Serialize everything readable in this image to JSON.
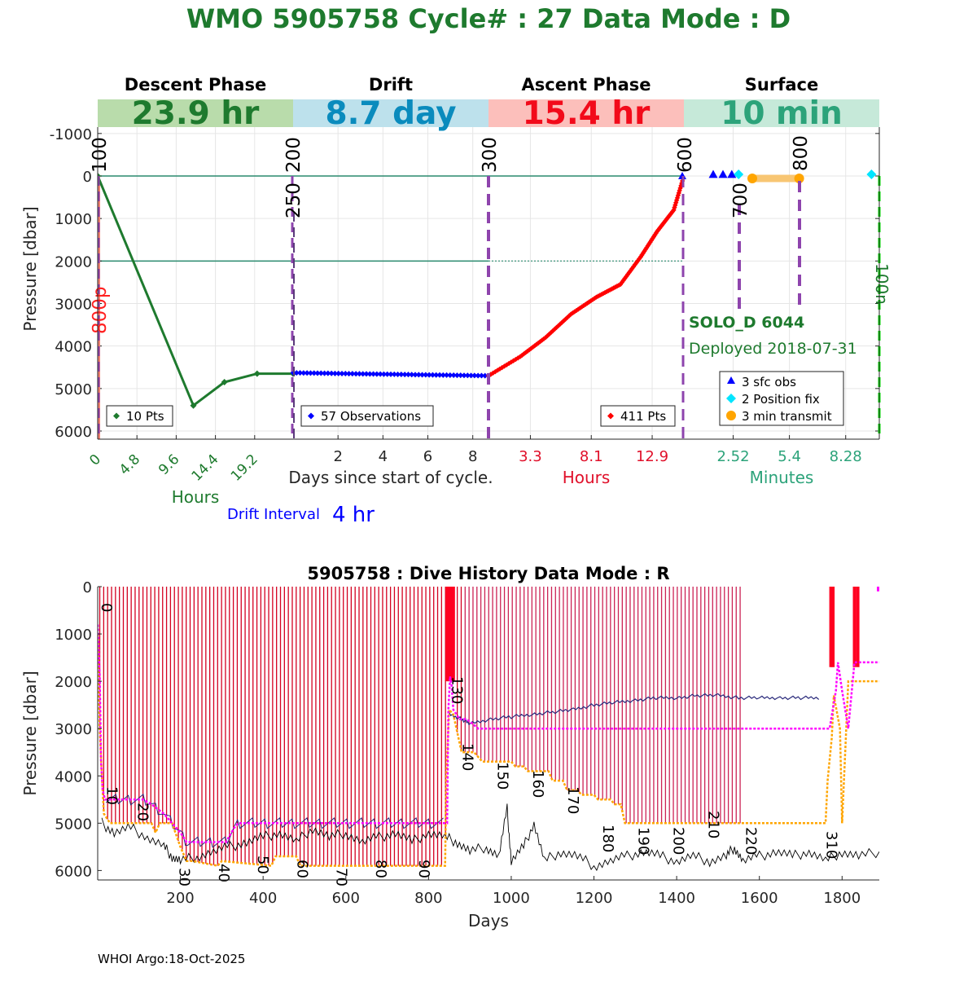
{
  "header": {
    "title": "WMO 5905758   Cycle# : 27   Data Mode : D"
  },
  "footer": {
    "credit": "WHOI Argo:18-Oct-2025"
  },
  "float_info": {
    "name": "SOLO_D 6044",
    "deployed": "Deployed 2018-07-31"
  },
  "colors": {
    "green": "#1e7a2e",
    "blue": "#0000ff",
    "red": "#ff0000",
    "teal": "#2ca37a",
    "purple": "#8e44ad",
    "magenta": "#ff00ff",
    "orange": "#ffa500",
    "cyan": "#00e5ff",
    "dive_red": "#d40020",
    "dive_navy": "#28287a"
  },
  "chart_data": [
    {
      "type": "line",
      "title": "",
      "ylabel": "Pressure [dbar]",
      "ylim": [
        6200,
        -1000
      ],
      "y_ticks": [
        "-1000",
        "0",
        "1000",
        "2000",
        "3000",
        "4000",
        "5000",
        "6000"
      ],
      "xlabel": "Days since start of cycle.",
      "ref_lines": [
        0,
        2000
      ],
      "drift_interval": {
        "label": "Drift Interval",
        "value": "4 hr"
      },
      "phases": [
        {
          "name": "Descent Phase",
          "duration": "23.9 hr",
          "axis_label": "Hours",
          "x_ticks": [
            "0",
            "4.8",
            "9.6",
            "14.4",
            "19.2"
          ],
          "legend": "10 Pts",
          "markers": [
            "100"
          ],
          "extra_label": "800p",
          "series": {
            "x": [
              0,
              11.7,
              15.5,
              19.5,
              23.9
            ],
            "y": [
              0,
              5400,
              4850,
              4650,
              4650
            ]
          }
        },
        {
          "name": "Drift",
          "duration": "8.7 day",
          "axis_label": "",
          "x_ticks": [
            "2",
            "4",
            "6",
            "8"
          ],
          "legend": "57 Observations",
          "markers": [
            "200",
            "250"
          ],
          "series": {
            "x_start": 0,
            "x_end": 8.7,
            "count": 57,
            "y_start": 4630,
            "y_end": 4700
          }
        },
        {
          "name": "Ascent Phase",
          "duration": "15.4 hr",
          "axis_label": "Hours",
          "x_ticks": [
            "3.3",
            "8.1",
            "12.9"
          ],
          "legend": "411 Pts",
          "markers": [
            "300",
            "600"
          ],
          "series": {
            "x": [
              0,
              2.5,
              4.5,
              6.5,
              8.5,
              10.4,
              12.0,
              13.3,
              14.6,
              15.4
            ],
            "y": [
              4700,
              4250,
              3800,
              3250,
              2850,
              2550,
              1900,
              1300,
              800,
              0
            ]
          }
        },
        {
          "name": "Surface",
          "duration": "10 min",
          "axis_label": "Minutes",
          "x_ticks": [
            "2.52",
            "5.4",
            "8.28"
          ],
          "legend": [
            "3 sfc obs",
            "2 Position fix",
            "3 min transmit"
          ],
          "markers": [
            "700",
            "800",
            "100n"
          ],
          "sfc_obs_x": [
            1.5,
            2.0,
            2.45
          ],
          "position_fix_x": [
            2.8,
            9.6
          ],
          "transmit": {
            "x_start": 3.5,
            "x_end": 5.9,
            "points_x": [
              3.5,
              5.9
            ]
          }
        }
      ]
    },
    {
      "type": "line",
      "title": "5905758 : Dive History      Data Mode : R",
      "xlabel": "Days",
      "ylabel": "Pressure [dbar]",
      "xlim": [
        0,
        1890
      ],
      "ylim": [
        6200,
        0
      ],
      "x_ticks": [
        200,
        400,
        600,
        800,
        1000,
        1200,
        1400,
        1600,
        1800
      ],
      "y_ticks": [
        0,
        1000,
        2000,
        3000,
        4000,
        5000,
        6000
      ],
      "cycle_labels": [
        {
          "label": "0",
          "x": 2
        },
        {
          "label": "10",
          "x": 15
        },
        {
          "label": "20",
          "x": 90
        },
        {
          "label": "30",
          "x": 190
        },
        {
          "label": "40",
          "x": 285
        },
        {
          "label": "50",
          "x": 380
        },
        {
          "label": "60",
          "x": 475
        },
        {
          "label": "70",
          "x": 570
        },
        {
          "label": "80",
          "x": 665
        },
        {
          "label": "90",
          "x": 770
        },
        {
          "label": "130",
          "x": 850
        },
        {
          "label": "140",
          "x": 875
        },
        {
          "label": "150",
          "x": 960
        },
        {
          "label": "160",
          "x": 1045
        },
        {
          "label": "170",
          "x": 1130
        },
        {
          "label": "180",
          "x": 1215
        },
        {
          "label": "190",
          "x": 1300
        },
        {
          "label": "200",
          "x": 1385
        },
        {
          "label": "210",
          "x": 1470
        },
        {
          "label": "220",
          "x": 1560
        },
        {
          "label": "310",
          "x": 1755
        }
      ],
      "park_pressure": {
        "x": [
          0,
          5,
          8,
          12,
          18,
          40,
          110,
          130,
          160,
          180,
          200,
          215,
          260,
          310,
          330,
          340,
          560,
          600,
          650,
          700,
          780,
          845,
          848,
          852,
          856,
          860,
          875,
          890,
          900,
          920,
          940,
          1000,
          1500,
          1700,
          1770,
          1785,
          1790,
          1800,
          1815,
          1830,
          1890
        ],
        "y": [
          800,
          1900,
          3700,
          4300,
          4500,
          4500,
          4500,
          4600,
          4800,
          5000,
          5200,
          5400,
          5400,
          5400,
          5100,
          5000,
          5000,
          5000,
          5000,
          5000,
          5000,
          5000,
          2600,
          1900,
          2100,
          2600,
          2800,
          2800,
          2850,
          3000,
          3000,
          3000,
          3000,
          3000,
          3000,
          2200,
          1600,
          2200,
          3000,
          1600,
          1600
        ]
      },
      "profile_depth": {
        "x": [
          0,
          5,
          10,
          15,
          30,
          45,
          110,
          130,
          140,
          150,
          170,
          180,
          200,
          215,
          230,
          290,
          300,
          420,
          430,
          480,
          490,
          760,
          770,
          840,
          843,
          850,
          860,
          870,
          880,
          910,
          930,
          1000,
          1010,
          1030,
          1040,
          1090,
          1100,
          1125,
          1135,
          1160,
          1170,
          1200,
          1210,
          1240,
          1250,
          1265,
          1275,
          1760,
          1765,
          1775,
          1780,
          1795,
          1800,
          1810,
          1815,
          1830,
          1890
        ],
        "y": [
          1000,
          3000,
          4000,
          4800,
          5000,
          5000,
          5000,
          5000,
          5200,
          5000,
          5000,
          5000,
          5500,
          5800,
          5800,
          5900,
          5800,
          5900,
          5700,
          5700,
          5900,
          5900,
          5900,
          5900,
          4000,
          2600,
          2700,
          3100,
          3500,
          3500,
          3700,
          3700,
          3800,
          3800,
          3900,
          3900,
          4100,
          4100,
          4300,
          4300,
          4400,
          4400,
          4500,
          4500,
          4600,
          4600,
          5000,
          5000,
          4100,
          3200,
          2300,
          3000,
          5000,
          3000,
          2000,
          2000,
          2000
        ]
      },
      "drift_pressure": {
        "x": [
          850,
          880,
          900,
          950,
          1000,
          1050,
          1100,
          1150,
          1200,
          1250,
          1300,
          1350,
          1400,
          1450,
          1500,
          1550,
          1600,
          1650,
          1700,
          1750
        ],
        "y": [
          2700,
          2800,
          2900,
          2800,
          2750,
          2700,
          2650,
          2600,
          2500,
          2450,
          2400,
          2350,
          2350,
          2300,
          2300,
          2350,
          2350,
          2350,
          2350,
          2350
        ]
      },
      "bottom_depth": {
        "x": [
          10,
          40,
          80,
          120,
          160,
          180,
          200,
          240,
          280,
          320,
          360,
          400,
          440,
          480,
          520,
          560,
          600,
          640,
          680,
          720,
          760,
          800,
          840,
          870,
          900,
          940,
          970,
          990,
          1000,
          1030,
          1055,
          1080,
          1120,
          1160,
          1200,
          1240,
          1280,
          1320,
          1360,
          1400,
          1440,
          1480,
          1520,
          1540,
          1560,
          1600,
          1640,
          1680,
          1720,
          1760,
          1800,
          1840,
          1890
        ],
        "y": [
          5000,
          5200,
          5100,
          5300,
          5500,
          5700,
          5800,
          5700,
          5600,
          5500,
          5400,
          5300,
          5200,
          5400,
          5100,
          5300,
          5200,
          5400,
          5300,
          5200,
          5400,
          5200,
          5300,
          5400,
          5600,
          5500,
          5700,
          4700,
          5800,
          5500,
          5000,
          5800,
          5600,
          5700,
          5900,
          5800,
          5700,
          5600,
          5700,
          5800,
          5700,
          5800,
          5700,
          5500,
          5800,
          5700,
          5600,
          5700,
          5600,
          5800,
          5600,
          5700,
          5600
        ]
      }
    }
  ]
}
